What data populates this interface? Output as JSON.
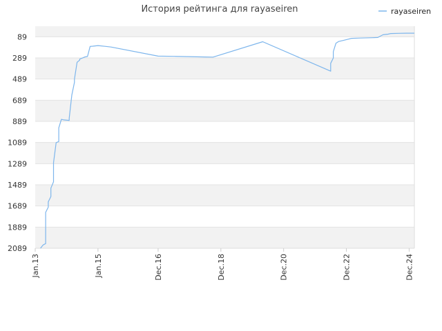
{
  "chart_data": {
    "type": "line",
    "title": "История рейтинга для rayaseiren",
    "xlabel": "",
    "ylabel": "",
    "y_inverted": true,
    "ylim": [
      2089,
      -11
    ],
    "y_ticks": [
      89,
      289,
      489,
      689,
      889,
      1089,
      1289,
      1489,
      1689,
      1889,
      2089
    ],
    "x_ticks": [
      "Jan.13",
      "Jan.15",
      "Dec.16",
      "Dec.18",
      "Dec.20",
      "Dec.22",
      "Dec.24"
    ],
    "xlim": [
      "2013-01",
      "2025-02"
    ],
    "grid": "alternating horizontal bands",
    "legend": "top-right",
    "series": [
      {
        "name": "rayaseiren",
        "color": "#7cb5ec",
        "points": [
          [
            "2013-03",
            2089
          ],
          [
            "2013-04",
            2058
          ],
          [
            "2013-05",
            2045
          ],
          [
            "2013-05",
            1960
          ],
          [
            "2013-05",
            1750
          ],
          [
            "2013-06",
            1700
          ],
          [
            "2013-06",
            1650
          ],
          [
            "2013-07",
            1600
          ],
          [
            "2013-07",
            1520
          ],
          [
            "2013-08",
            1460
          ],
          [
            "2013-08",
            1280
          ],
          [
            "2013-09",
            1090
          ],
          [
            "2013-10",
            1080
          ],
          [
            "2013-10",
            950
          ],
          [
            "2013-11",
            870
          ],
          [
            "2013-12",
            875
          ],
          [
            "2014-02",
            880
          ],
          [
            "2014-02",
            860
          ],
          [
            "2014-03",
            640
          ],
          [
            "2014-04",
            520
          ],
          [
            "2014-04",
            490
          ],
          [
            "2014-05",
            330
          ],
          [
            "2014-06",
            310
          ],
          [
            "2014-06",
            300
          ],
          [
            "2014-07",
            290
          ],
          [
            "2014-08",
            280
          ],
          [
            "2014-09",
            275
          ],
          [
            "2014-10",
            180
          ],
          [
            "2014-11",
            178
          ],
          [
            "2015-01",
            172
          ],
          [
            "2015-04",
            180
          ],
          [
            "2015-06",
            186
          ],
          [
            "2016-12",
            272
          ],
          [
            "2017-06",
            274
          ],
          [
            "2018-06",
            280
          ],
          [
            "2018-09",
            281
          ],
          [
            "2020-04",
            136
          ],
          [
            "2022-06",
            414
          ],
          [
            "2022-06",
            340
          ],
          [
            "2022-07",
            290
          ],
          [
            "2022-07",
            230
          ],
          [
            "2022-08",
            150
          ],
          [
            "2022-09",
            134
          ],
          [
            "2022-11",
            122
          ],
          [
            "2023-02",
            104
          ],
          [
            "2023-05",
            101
          ],
          [
            "2023-10",
            98
          ],
          [
            "2023-12",
            96
          ],
          [
            "2024-02",
            70
          ],
          [
            "2024-04",
            64
          ],
          [
            "2024-05",
            58
          ],
          [
            "2024-08",
            56
          ],
          [
            "2024-11",
            55
          ],
          [
            "2025-02",
            55
          ]
        ]
      }
    ]
  }
}
